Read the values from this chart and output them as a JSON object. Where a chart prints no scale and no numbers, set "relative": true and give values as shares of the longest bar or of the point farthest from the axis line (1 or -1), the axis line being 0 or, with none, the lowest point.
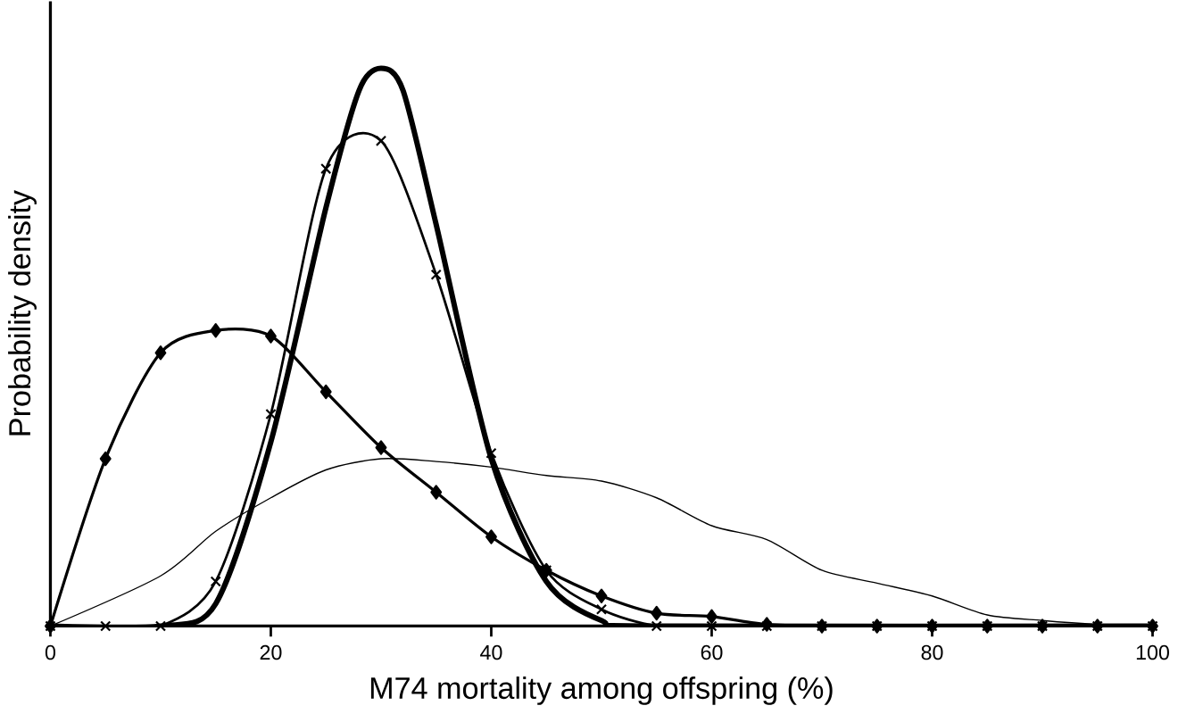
{
  "chart_data": {
    "type": "line",
    "relative": true,
    "xlabel": "M74 mortality among offspring (%)",
    "ylabel": "Probability density",
    "xlim": [
      0,
      100
    ],
    "xticks": [
      0,
      20,
      40,
      60,
      80,
      100
    ],
    "grid": false,
    "series": [
      {
        "color": "#000000",
        "marker": "diamond",
        "x": [
          0,
          5,
          10,
          15,
          20,
          25,
          30,
          35,
          40,
          45,
          50,
          55,
          60,
          65,
          70,
          75,
          80,
          85,
          90,
          95,
          100
        ],
        "values": [
          0,
          0.3,
          0.49,
          0.53,
          0.52,
          0.42,
          0.32,
          0.24,
          0.16,
          0.1,
          0.054,
          0.023,
          0.017,
          0.003,
          0,
          0,
          0,
          0,
          0,
          0,
          0
        ]
      },
      {
        "color": "#000000",
        "marker": "cross",
        "x": [
          0,
          5,
          10,
          15,
          20,
          25,
          30,
          35,
          40,
          45,
          50,
          55,
          60,
          65,
          70,
          75,
          80,
          85,
          90,
          95,
          100
        ],
        "values": [
          0,
          0,
          0,
          0.08,
          0.38,
          0.82,
          0.87,
          0.63,
          0.31,
          0.1,
          0.03,
          0,
          0,
          0,
          0,
          0,
          0,
          0,
          0,
          0,
          0
        ]
      },
      {
        "color": "#000000",
        "marker": "none",
        "x": [
          0,
          10,
          15,
          20,
          25,
          28,
          30,
          32,
          35,
          40,
          45,
          50,
          55,
          100
        ],
        "values": [
          0,
          0,
          0.04,
          0.33,
          0.75,
          0.96,
          1,
          0.96,
          0.72,
          0.3,
          0.08,
          0.01,
          0,
          0
        ]
      },
      {
        "color": "#000000",
        "marker": "none",
        "x": [
          0,
          10,
          15,
          20,
          25,
          30,
          35,
          40,
          45,
          50,
          55,
          60,
          65,
          70,
          75,
          80,
          85,
          90,
          95,
          100
        ],
        "values": [
          0,
          0.09,
          0.17,
          0.23,
          0.28,
          0.3,
          0.295,
          0.285,
          0.27,
          0.26,
          0.23,
          0.18,
          0.155,
          0.1,
          0.077,
          0.054,
          0.02,
          0.01,
          0.003,
          0
        ]
      }
    ]
  }
}
